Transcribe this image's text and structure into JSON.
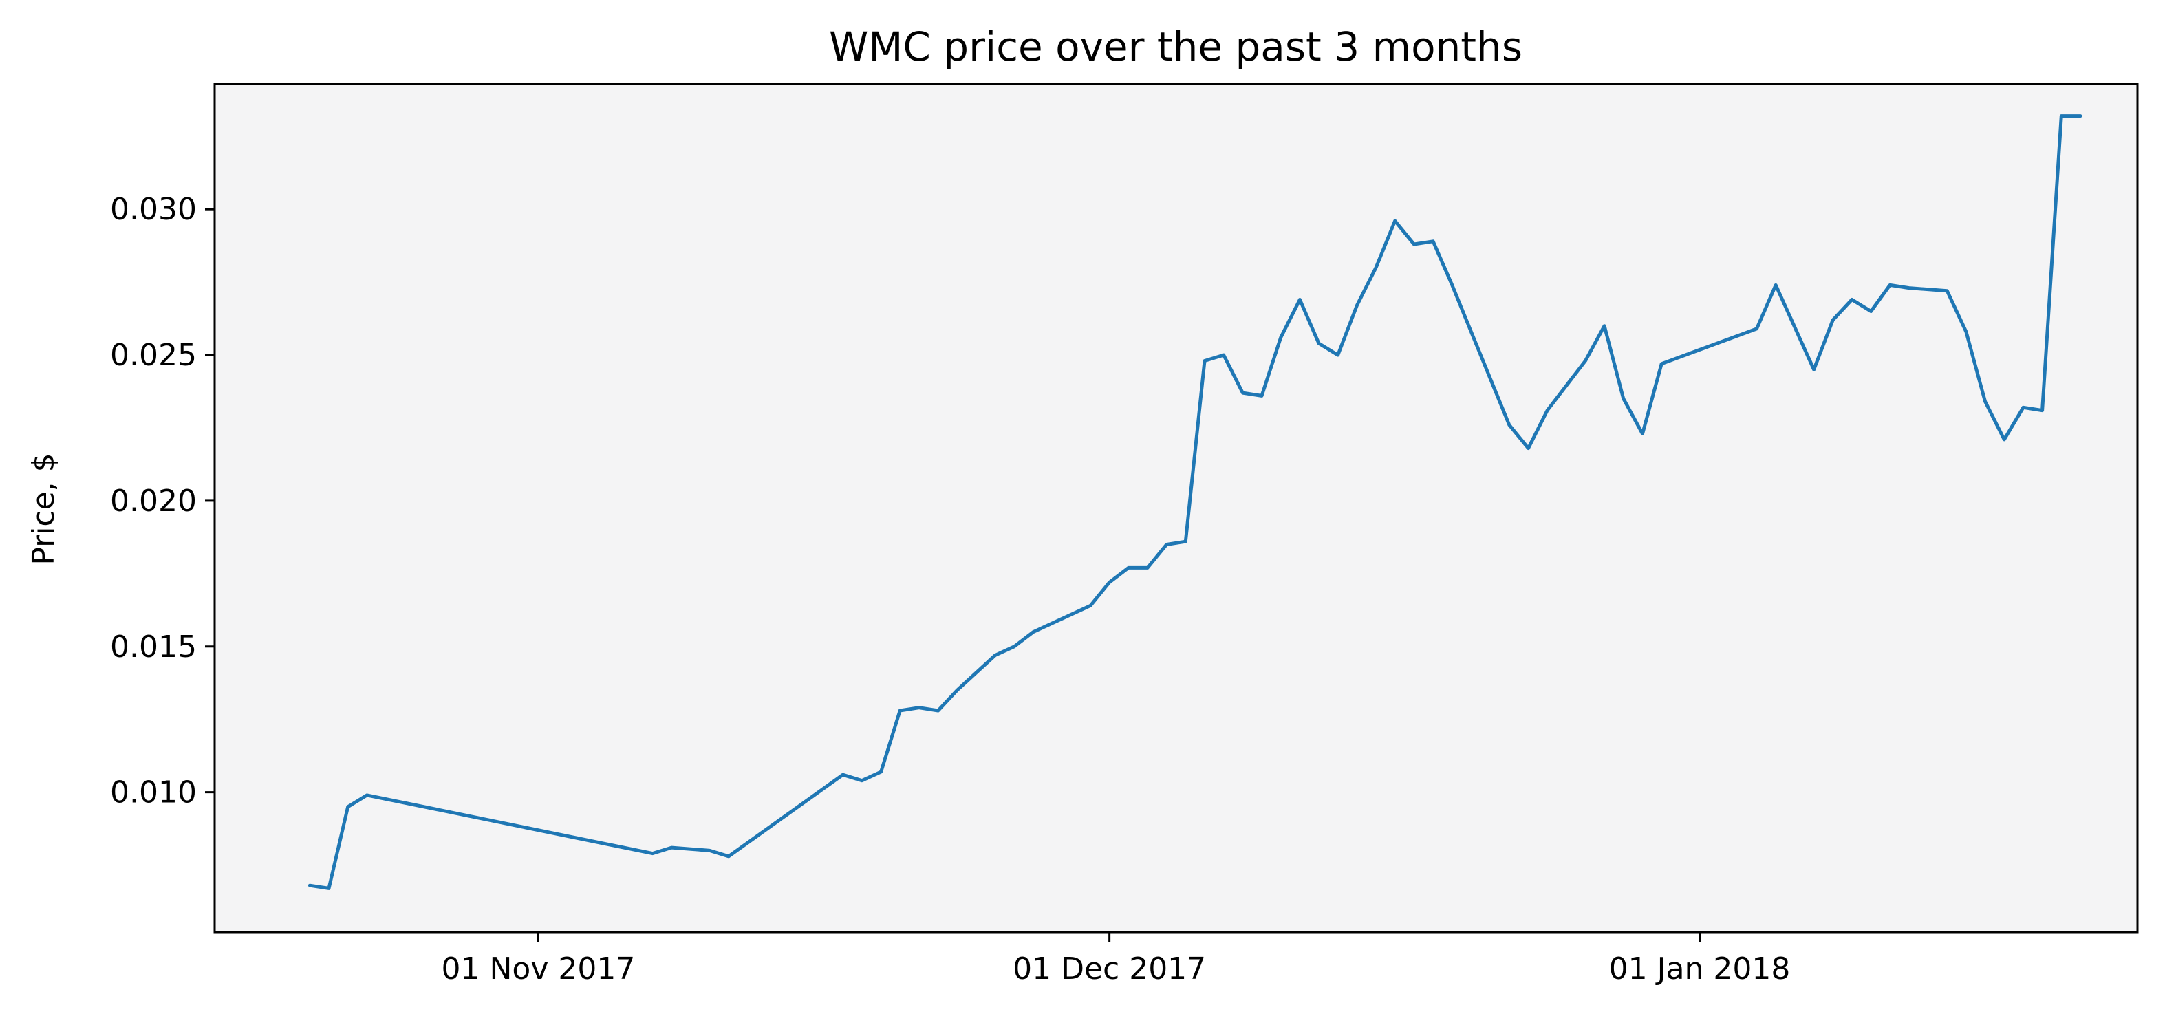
{
  "chart_data": {
    "type": "line",
    "title": "WMC price over the past 3 months",
    "xlabel": "",
    "ylabel": "Price, $",
    "grid": false,
    "legend": "none",
    "x_ticks": [
      {
        "date": "2017-11-01",
        "label": "01 Nov 2017"
      },
      {
        "date": "2017-12-01",
        "label": "01 Dec 2017"
      },
      {
        "date": "2018-01-01",
        "label": "01 Jan 2018"
      }
    ],
    "y_ticks": [
      0.01,
      0.015,
      0.02,
      0.025,
      0.03
    ],
    "y_tick_labels": [
      "0.010",
      "0.015",
      "0.020",
      "0.025",
      "0.030"
    ],
    "xlim": [
      "2017-10-15",
      "2018-01-24"
    ],
    "ylim": [
      0.0052,
      0.0343
    ],
    "series": [
      {
        "color": "#1f77b4",
        "x": [
          "2017-10-20",
          "2017-10-21",
          "2017-10-22",
          "2017-10-23",
          "2017-11-07",
          "2017-11-08",
          "2017-11-10",
          "2017-11-11",
          "2017-11-17",
          "2017-11-18",
          "2017-11-19",
          "2017-11-20",
          "2017-11-21",
          "2017-11-22",
          "2017-11-23",
          "2017-11-25",
          "2017-11-26",
          "2017-11-27",
          "2017-11-28",
          "2017-11-30",
          "2017-12-01",
          "2017-12-02",
          "2017-12-03",
          "2017-12-04",
          "2017-12-05",
          "2017-12-06",
          "2017-12-07",
          "2017-12-08",
          "2017-12-09",
          "2017-12-10",
          "2017-12-11",
          "2017-12-12",
          "2017-12-13",
          "2017-12-14",
          "2017-12-15",
          "2017-12-16",
          "2017-12-17",
          "2017-12-18",
          "2017-12-19",
          "2017-12-20",
          "2017-12-22",
          "2017-12-23",
          "2017-12-24",
          "2017-12-26",
          "2017-12-27",
          "2017-12-28",
          "2017-12-29",
          "2017-12-30",
          "2018-01-04",
          "2018-01-05",
          "2018-01-07",
          "2018-01-08",
          "2018-01-09",
          "2018-01-10",
          "2018-01-11",
          "2018-01-12",
          "2018-01-14",
          "2018-01-15",
          "2018-01-16",
          "2018-01-17",
          "2018-01-18",
          "2018-01-19",
          "2018-01-20",
          "2018-01-21"
        ],
        "y": [
          0.0068,
          0.0067,
          0.0095,
          0.0099,
          0.0079,
          0.0081,
          0.008,
          0.0078,
          0.0106,
          0.0104,
          0.0107,
          0.0128,
          0.0129,
          0.0128,
          0.0135,
          0.0147,
          0.015,
          0.0155,
          0.0158,
          0.0164,
          0.0172,
          0.0177,
          0.0177,
          0.0185,
          0.0186,
          0.0248,
          0.025,
          0.0237,
          0.0236,
          0.0256,
          0.0269,
          0.0254,
          0.025,
          0.0267,
          0.028,
          0.0296,
          0.0288,
          0.0289,
          0.0274,
          0.0258,
          0.0226,
          0.0218,
          0.0231,
          0.0248,
          0.026,
          0.0235,
          0.0223,
          0.0247,
          0.0259,
          0.0274,
          0.0245,
          0.0262,
          0.0269,
          0.0265,
          0.0274,
          0.0273,
          0.0272,
          0.0258,
          0.0234,
          0.0221,
          0.0232,
          0.0231,
          0.0332,
          0.0332
        ]
      }
    ]
  },
  "colors": {
    "axes_background": "#f4f4f5",
    "line": "#1f77b4"
  }
}
